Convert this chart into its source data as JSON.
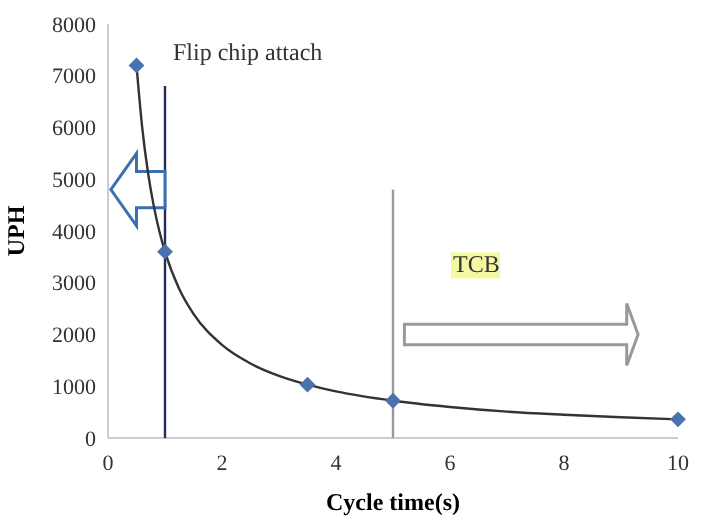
{
  "chart_data": {
    "type": "line",
    "xlabel": "Cycle time(s)",
    "ylabel": "UPH",
    "xlim": [
      0,
      10
    ],
    "xticks": [
      0,
      2,
      4,
      6,
      8,
      10
    ],
    "ylim": [
      0,
      8000
    ],
    "yticks": [
      0,
      1000,
      2000,
      3000,
      4000,
      5000,
      6000,
      7000,
      8000
    ],
    "grid": false,
    "series": [
      {
        "color": "#333333",
        "marker": "none",
        "x": [
          0.5,
          0.6,
          0.7,
          0.8,
          0.9,
          1,
          1.25,
          1.5,
          2,
          2.5,
          3,
          3.5,
          4,
          5,
          6,
          7,
          8,
          9,
          10
        ],
        "values": [
          7200,
          6000,
          5140,
          4500,
          4000,
          3600,
          2880,
          2400,
          1800,
          1440,
          1200,
          1030,
          900,
          720,
          600,
          510,
          450,
          400,
          360
        ]
      },
      {
        "type": "scatter",
        "color": "#4a72b0",
        "marker": "diamond",
        "x": [
          0.5,
          1,
          3.5,
          5,
          10
        ],
        "values": [
          7200,
          3600,
          1030,
          720,
          360
        ]
      }
    ],
    "ref_lines": [
      {
        "axis": "x",
        "value": 1,
        "label": "Flip chip attach",
        "color": "#1f2f55"
      },
      {
        "axis": "x",
        "value": 5,
        "label": "TCB",
        "color": "#999999"
      }
    ]
  }
}
